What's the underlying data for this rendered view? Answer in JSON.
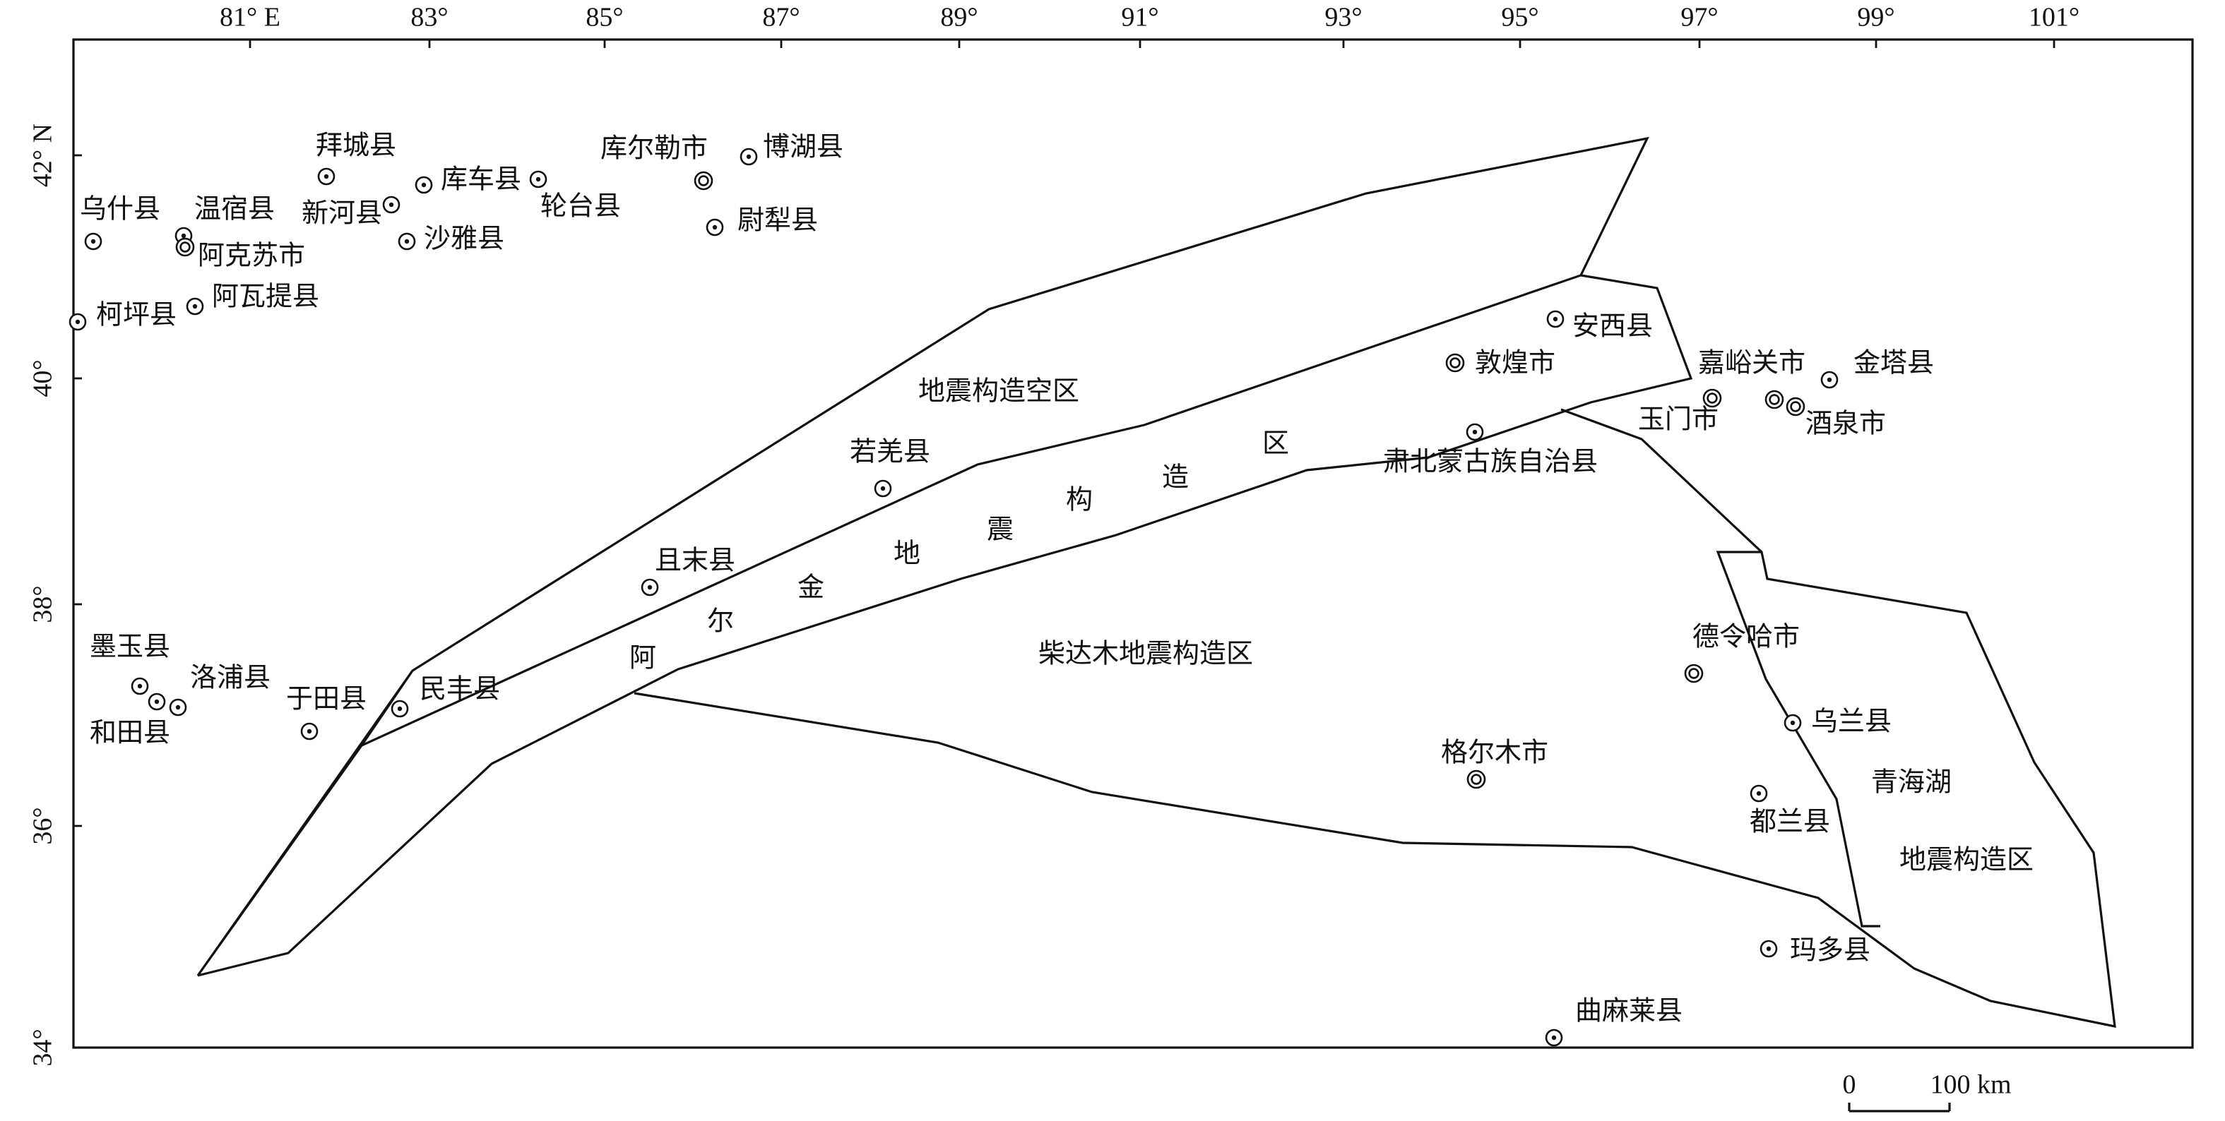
{
  "longitude_labels": [
    "81° E",
    "83°",
    "85°",
    "87°",
    "89°",
    "91°",
    "93°",
    "95°",
    "97°",
    "99°",
    "101°"
  ],
  "latitude_labels": [
    "42° N",
    "40°",
    "38°",
    "36°",
    "34°"
  ],
  "places": [
    {
      "name": "乌什县"
    },
    {
      "name": "温宿县"
    },
    {
      "name": "阿克苏市"
    },
    {
      "name": "柯坪县"
    },
    {
      "name": "阿瓦提县"
    },
    {
      "name": "拜城县"
    },
    {
      "name": "新河县"
    },
    {
      "name": "库车县"
    },
    {
      "name": "沙雅县"
    },
    {
      "name": "轮台县"
    },
    {
      "name": "库尔勒市"
    },
    {
      "name": "博湖县"
    },
    {
      "name": "尉犁县"
    },
    {
      "name": "安西县"
    },
    {
      "name": "敦煌市"
    },
    {
      "name": "嘉峪关市"
    },
    {
      "name": "金塔县"
    },
    {
      "name": "玉门市"
    },
    {
      "name": "酒泉市"
    },
    {
      "name": "若羌县"
    },
    {
      "name": "且末县"
    },
    {
      "name": "肃北蒙古族自治县"
    },
    {
      "name": "墨玉县"
    },
    {
      "name": "洛浦县"
    },
    {
      "name": "和田县"
    },
    {
      "name": "于田县"
    },
    {
      "name": "民丰县"
    },
    {
      "name": "德令哈市"
    },
    {
      "name": "乌兰县"
    },
    {
      "name": "格尔木市"
    },
    {
      "name": "都兰县"
    },
    {
      "name": "玛多县"
    },
    {
      "name": "曲麻莱县"
    }
  ],
  "regions": [
    "地震构造空区",
    "柴达木地震构造区",
    "青海湖",
    "地震构造区"
  ],
  "altun_region_chars": [
    "阿",
    "尔",
    "金",
    "地",
    "震",
    "构",
    "造",
    "区"
  ],
  "scale_bar": {
    "zero": "0",
    "distance": "100 km"
  }
}
